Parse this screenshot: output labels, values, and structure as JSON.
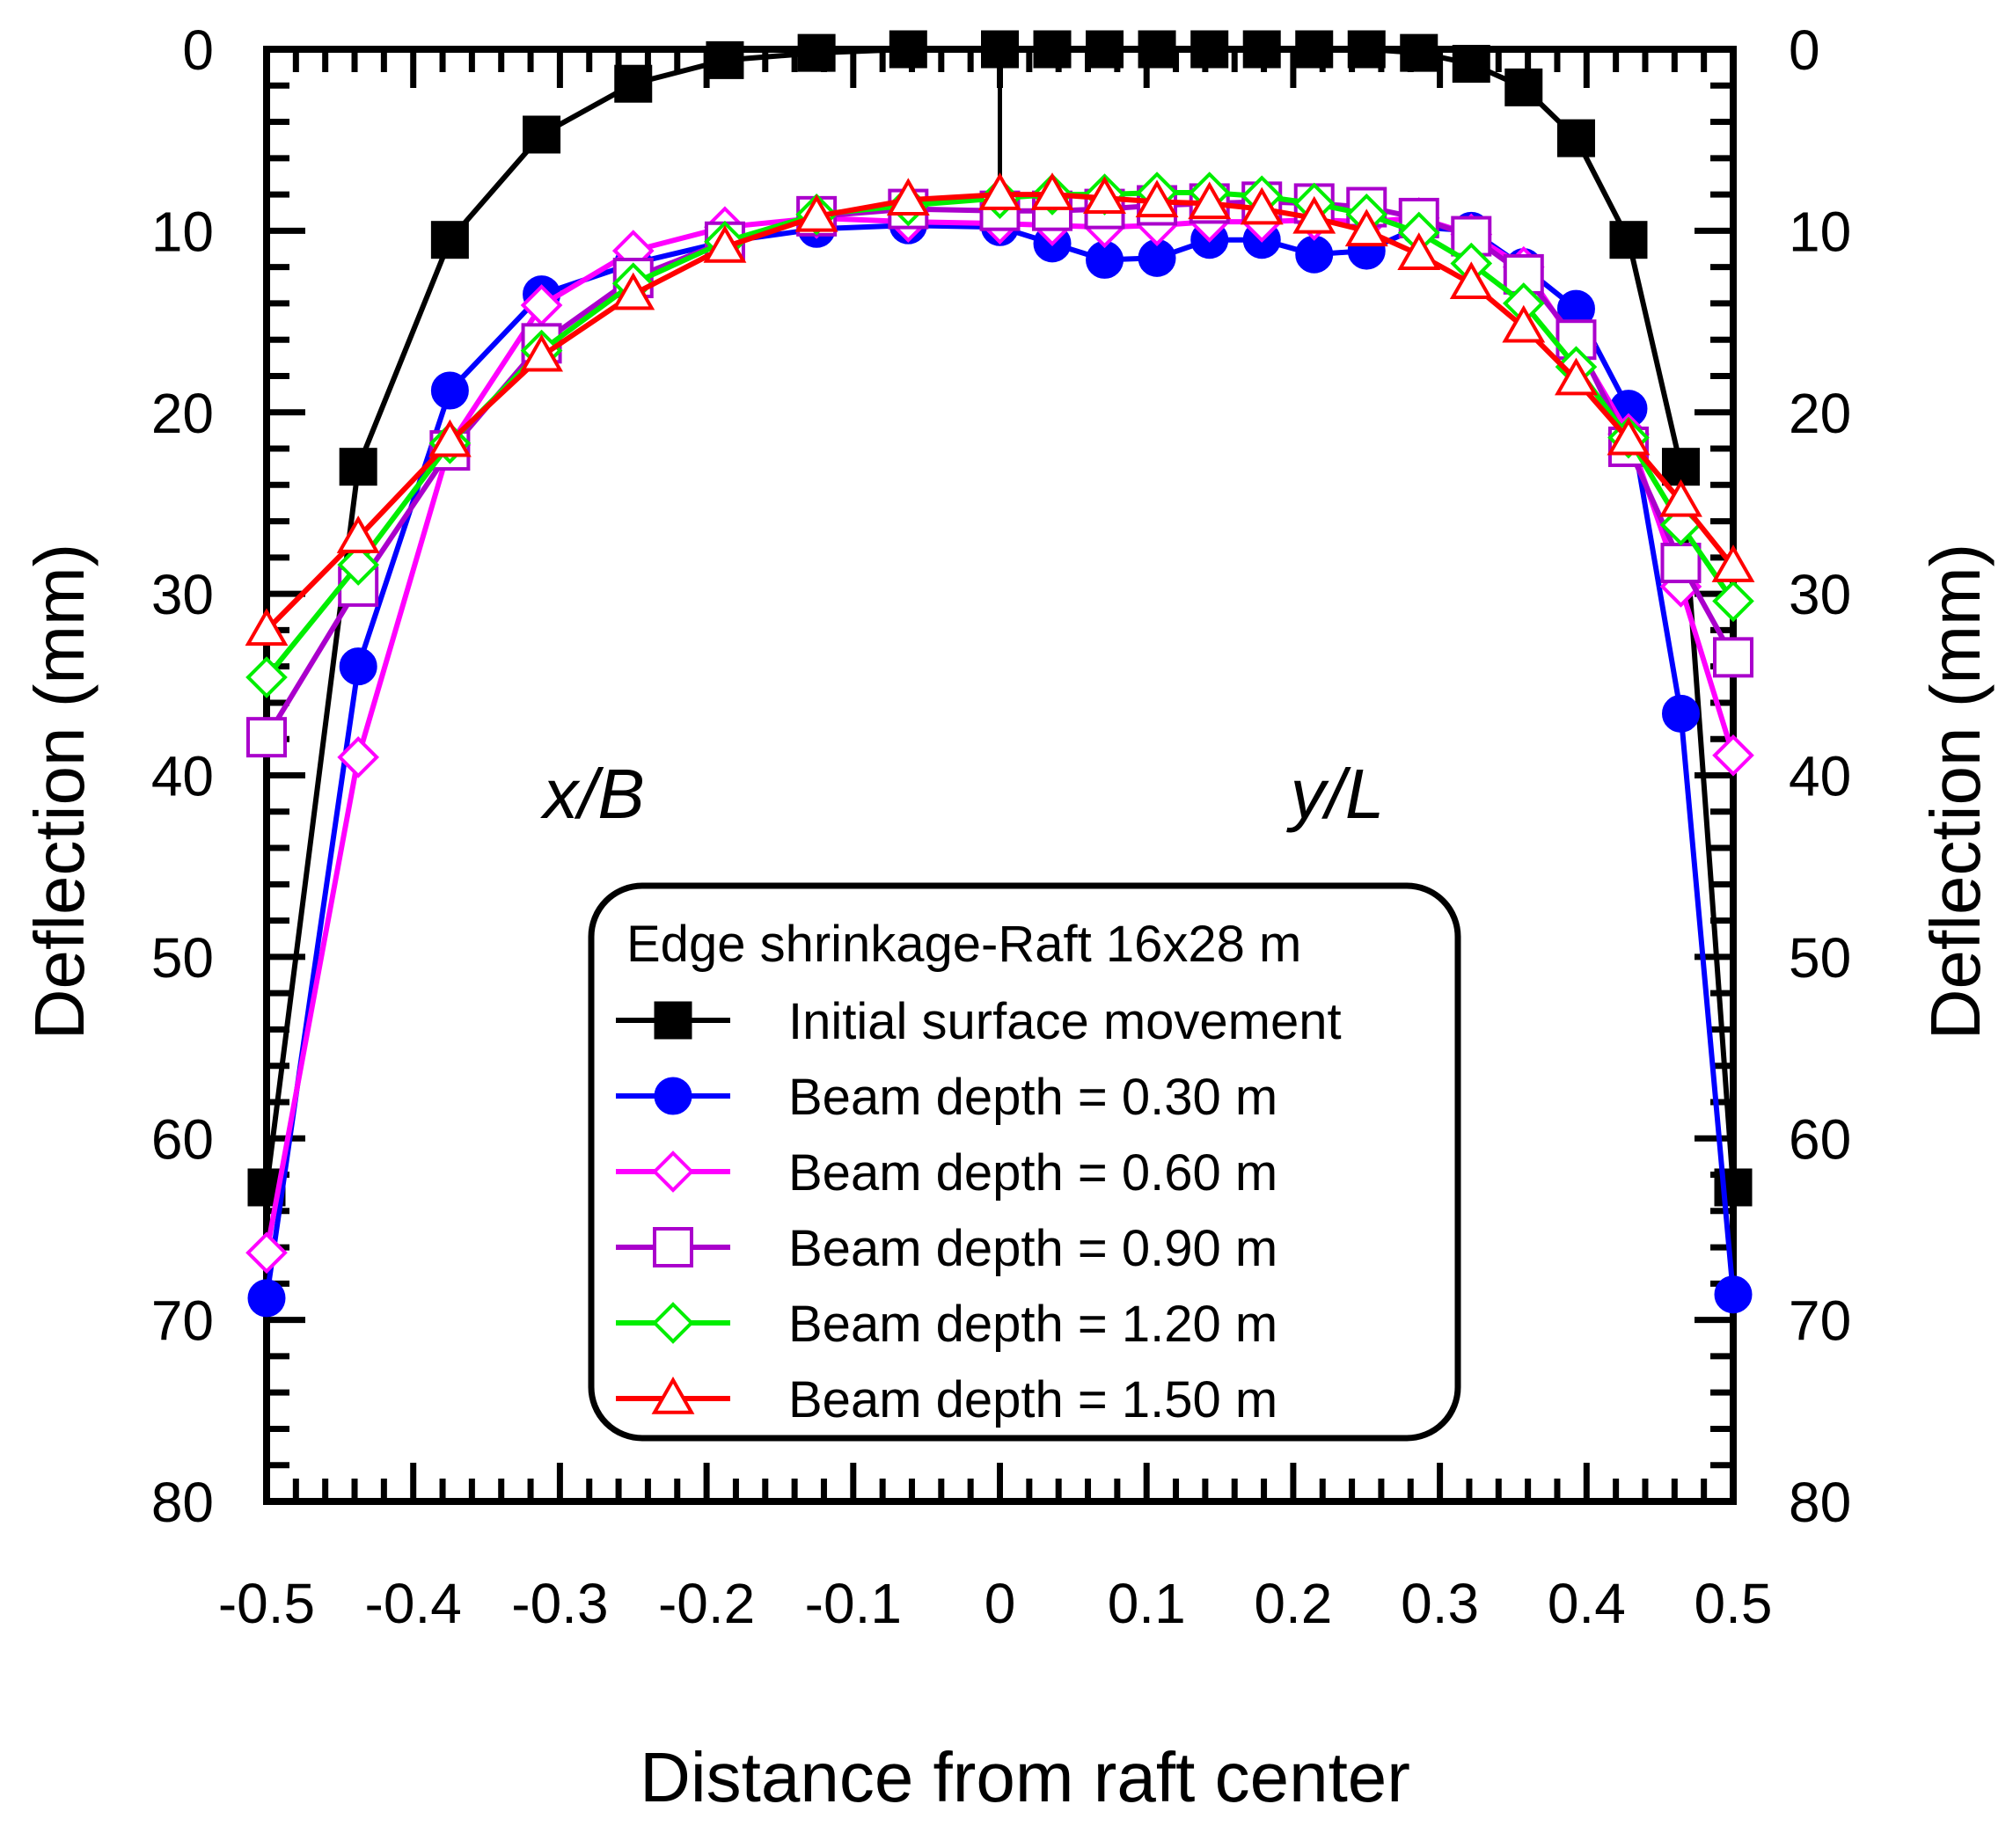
{
  "chart_data": {
    "type": "line",
    "title": "",
    "xlabel": "Distance from raft center",
    "xlabel_left": "x/B",
    "xlabel_right": "y/L",
    "ylabel_left": "Deflection (mm)",
    "ylabel_right": "Deflection (mm)",
    "ylim": [
      0,
      80
    ],
    "y_inverted": true,
    "y_ticks": [
      "0",
      "10",
      "20",
      "30",
      "40",
      "50",
      "60",
      "70",
      "80"
    ],
    "x_tick_labels": [
      "-0.5",
      "-0.4",
      "-0.3",
      "-0.2",
      "-0.1",
      "0",
      "0.1",
      "0.2",
      "0.3",
      "0.4",
      "0.5"
    ],
    "legend": {
      "title": "Edge shrinkage-Raft 16x28 m",
      "placement": "bottom-center"
    },
    "x": [
      -0.5,
      -0.4375,
      -0.375,
      -0.3125,
      -0.25,
      -0.1875,
      -0.125,
      -0.0625,
      0,
      0.0357,
      0.0714,
      0.1071,
      0.1429,
      0.1786,
      0.2143,
      0.25,
      0.2857,
      0.3214,
      0.3571,
      0.3929,
      0.4286,
      0.4643,
      0.5
    ],
    "series": [
      {
        "name": "Initial surface movement",
        "color": "#000000",
        "marker": "filled-square",
        "values": [
          62.7,
          23.0,
          10.5,
          4.7,
          1.9,
          0.6,
          0.2,
          0.0,
          0.0,
          0.0,
          0.0,
          0.0,
          0.0,
          0.0,
          0.0,
          0.0,
          0.2,
          0.8,
          2.1,
          4.9,
          10.5,
          23.0,
          62.7
        ]
      },
      {
        "name": "Beam depth = 0.30 m",
        "color": "#0000ff",
        "marker": "filled-circle",
        "values": [
          68.8,
          34.0,
          18.8,
          13.5,
          11.8,
          10.6,
          9.9,
          9.7,
          9.8,
          10.7,
          11.6,
          11.5,
          10.5,
          10.5,
          11.3,
          11.1,
          9.8,
          10.0,
          12.0,
          14.3,
          19.8,
          36.6,
          68.6
        ]
      },
      {
        "name": "Beam depth = 0.60 m",
        "color": "#ff00ff",
        "marker": "open-diamond",
        "values": [
          66.3,
          39.0,
          21.8,
          14.1,
          11.1,
          9.8,
          9.3,
          9.5,
          9.6,
          9.7,
          9.8,
          9.7,
          9.5,
          9.5,
          9.4,
          9.5,
          9.3,
          10.2,
          12.0,
          16.3,
          21.2,
          29.6,
          38.9
        ]
      },
      {
        "name": "Beam depth = 0.90 m",
        "color": "#aa00cc",
        "marker": "open-square",
        "values": [
          37.9,
          29.6,
          22.1,
          16.2,
          12.6,
          10.6,
          9.2,
          8.8,
          8.9,
          8.9,
          8.8,
          8.6,
          8.5,
          8.4,
          8.5,
          8.7,
          9.3,
          10.3,
          12.4,
          16.0,
          21.9,
          28.3,
          33.5
        ]
      },
      {
        "name": "Beam depth = 1.20 m",
        "color": "#00ee00",
        "marker": "open-diamond",
        "values": [
          34.6,
          28.4,
          21.7,
          16.6,
          12.9,
          10.6,
          9.1,
          8.6,
          8.2,
          8.0,
          8.0,
          7.9,
          7.9,
          8.1,
          8.5,
          9.1,
          10.1,
          11.8,
          14.0,
          17.5,
          21.4,
          26.2,
          30.4
        ]
      },
      {
        "name": "Beam depth = 1.50 m",
        "color": "#ff0000",
        "marker": "open-triangle",
        "values": [
          32.0,
          26.9,
          21.6,
          16.9,
          13.5,
          10.9,
          9.2,
          8.3,
          8.0,
          8.0,
          8.2,
          8.4,
          8.5,
          8.8,
          9.3,
          10.0,
          11.3,
          12.9,
          15.3,
          18.2,
          21.5,
          24.9,
          28.5
        ]
      }
    ]
  }
}
